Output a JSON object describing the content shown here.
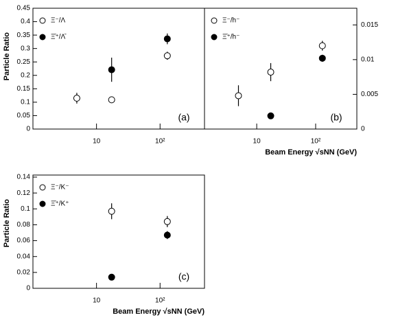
{
  "chart_data": [
    {
      "type": "scatter",
      "y_label": "Particle Ratio",
      "panel_label": "(a)",
      "xlog": true,
      "xlim": [
        1,
        500
      ],
      "xticks": [
        {
          "value": 10,
          "label": "10"
        },
        {
          "value": 100,
          "label": "10²"
        }
      ],
      "ylim": [
        0,
        0.45
      ],
      "yticks": [
        0,
        0.05,
        0.1,
        0.15,
        0.2,
        0.25,
        0.3,
        0.35,
        0.4,
        0.45
      ],
      "yaxis_side": "left",
      "series": [
        {
          "name": "Ξ⁻/Λ",
          "marker": "open",
          "color": "#000000",
          "x": [
            4.9,
            17.3,
            130
          ],
          "values": [
            0.115,
            0.109,
            0.273
          ],
          "errors": [
            0.02,
            0.008,
            0.015
          ]
        },
        {
          "name": "Ξ̄⁺/Λ̄",
          "marker": "filled",
          "color": "#000000",
          "x": [
            17.3,
            130
          ],
          "values": [
            0.221,
            0.336
          ],
          "errors": [
            0.045,
            0.02
          ]
        }
      ]
    },
    {
      "type": "scatter",
      "x_label": "Beam Energy √sNN (GeV)",
      "panel_label": "(b)",
      "xlog": true,
      "xlim": [
        1.3,
        500
      ],
      "xticks": [
        {
          "value": 10,
          "label": "10"
        },
        {
          "value": 100,
          "label": "10²"
        }
      ],
      "ylim": [
        0,
        0.0174
      ],
      "yticks": [
        0,
        0.005,
        0.01,
        0.015
      ],
      "yaxis_side": "right",
      "series": [
        {
          "name": "Ξ⁻/h⁻",
          "marker": "open",
          "color": "#000000",
          "x": [
            4.9,
            17.3,
            130
          ],
          "values": [
            0.0048,
            0.0082,
            0.012
          ],
          "errors": [
            0.0015,
            0.0013,
            0.0007
          ]
        },
        {
          "name": "Ξ̄⁺/h⁻",
          "marker": "filled",
          "color": "#000000",
          "x": [
            17.3,
            130
          ],
          "values": [
            0.0019,
            0.0102
          ],
          "errors": [
            0.0002,
            0.0005
          ]
        }
      ]
    },
    {
      "type": "scatter",
      "x_label": "Beam Energy √sNN (GeV)",
      "y_label": "Particle Ratio",
      "panel_label": "(c)",
      "xlog": true,
      "xlim": [
        1,
        500
      ],
      "xticks": [
        {
          "value": 10,
          "label": "10"
        },
        {
          "value": 100,
          "label": "10²"
        }
      ],
      "ylim": [
        0,
        0.1426
      ],
      "yticks": [
        0,
        0.02,
        0.04,
        0.06,
        0.08,
        0.1,
        0.12,
        0.14
      ],
      "yaxis_side": "left",
      "series": [
        {
          "name": "Ξ⁻/K⁻",
          "marker": "open",
          "color": "#000000",
          "x": [
            17.3,
            130
          ],
          "values": [
            0.097,
            0.084
          ],
          "errors": [
            0.01,
            0.007
          ]
        },
        {
          "name": "Ξ̄⁺/K⁺",
          "marker": "filled",
          "color": "#000000",
          "x": [
            17.3,
            130
          ],
          "values": [
            0.014,
            0.067
          ],
          "errors": [
            0.001,
            0.005
          ]
        }
      ]
    }
  ]
}
